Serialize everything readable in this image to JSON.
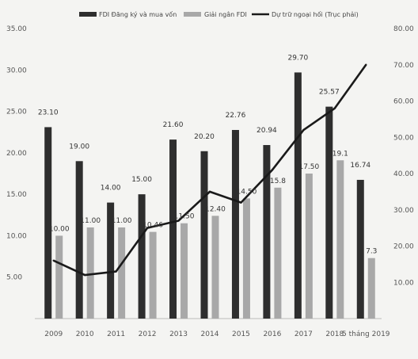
{
  "chart_data": {
    "type": "bar",
    "categories": [
      "2009",
      "2010",
      "2011",
      "2012",
      "2013",
      "2014",
      "2015",
      "2016",
      "2017",
      "2018",
      "5 tháng 2019"
    ],
    "series": [
      {
        "name": "FDI Đăng ký và mua vốn",
        "type": "bar",
        "axis": "left",
        "values": [
          23.1,
          19.0,
          14.0,
          15.0,
          21.6,
          20.2,
          22.76,
          20.94,
          29.7,
          25.57,
          16.74
        ],
        "labels": [
          "23.10",
          "19.00",
          "14.00",
          "15.00",
          "21.60",
          "20.20",
          "22.76",
          "20.94",
          "29.70",
          "25.57",
          "16.74"
        ],
        "color": "#2e2e2e"
      },
      {
        "name": "Giải ngân FDI",
        "type": "bar",
        "axis": "left",
        "values": [
          10.0,
          11.0,
          11.0,
          10.46,
          11.5,
          12.4,
          14.5,
          15.8,
          17.5,
          19.1,
          7.3
        ],
        "labels": [
          "10.00",
          "11.00",
          "11.00",
          "10.46",
          "11.50",
          "12.40",
          "14.50",
          "15.8",
          "17.50",
          "19.1",
          "7.3"
        ],
        "color": "#a8a8a8"
      },
      {
        "name": "Dự trữ ngoại hối (Trục phải)",
        "type": "line",
        "axis": "right",
        "values": [
          16,
          12,
          13,
          25,
          27,
          35,
          32,
          41,
          52,
          58,
          70
        ],
        "color": "#1a1a1a"
      }
    ],
    "left_axis": {
      "ylim": [
        0,
        35
      ],
      "ticks": [
        "5.00",
        "10.00",
        "15.00",
        "20.00",
        "25.00",
        "30.00",
        "35.00"
      ]
    },
    "right_axis": {
      "ylim": [
        0,
        80
      ],
      "ticks": [
        "10.00",
        "20.00",
        "30.00",
        "40.00",
        "50.00",
        "60.00",
        "70.00",
        "80.00"
      ]
    },
    "grid": false,
    "legend": "top"
  }
}
